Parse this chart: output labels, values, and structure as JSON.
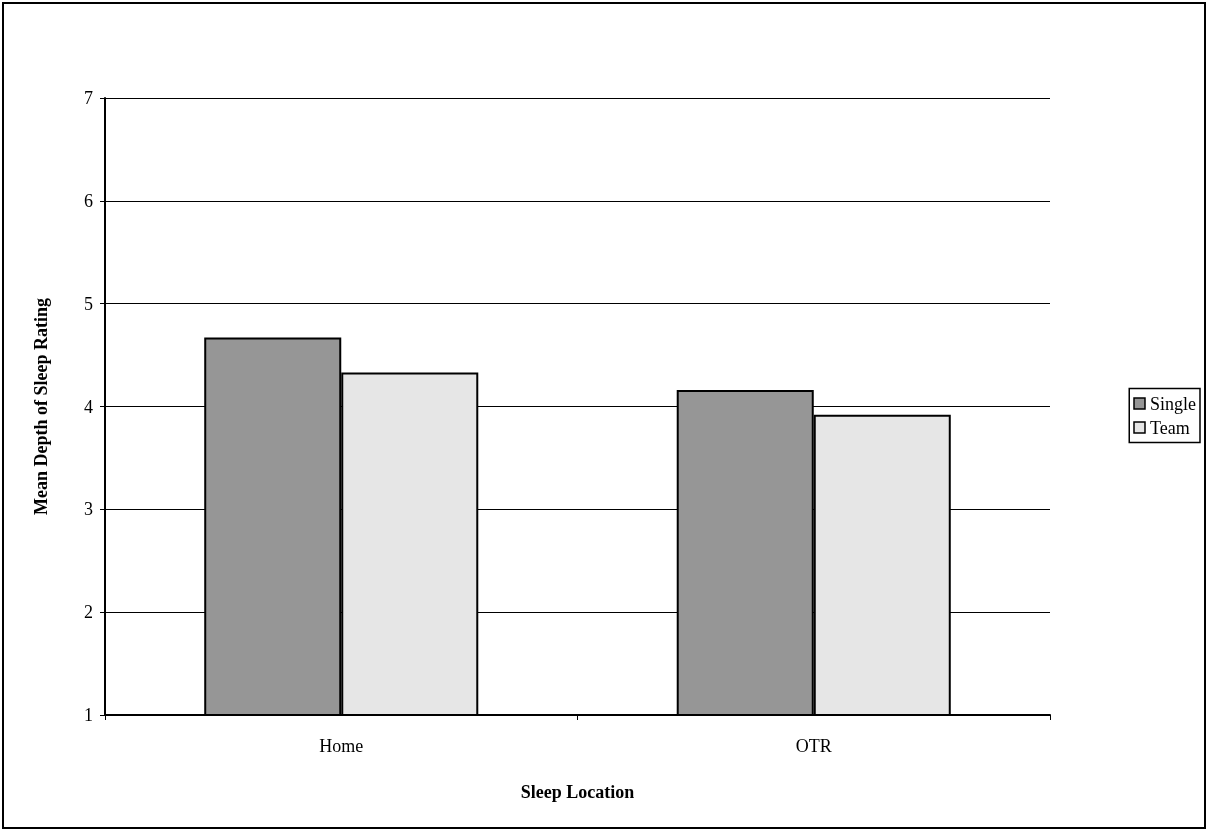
{
  "chart_data": {
    "type": "bar",
    "xlabel": "Sleep Location",
    "ylabel": "Mean Depth of Sleep Rating",
    "categories": [
      "Home",
      "OTR"
    ],
    "series": [
      {
        "name": "Single",
        "color": "#969696",
        "values": [
          4.67,
          4.16
        ]
      },
      {
        "name": "Team",
        "color": "#e6e6e6",
        "values": [
          4.33,
          3.92
        ]
      }
    ],
    "ylim": [
      1,
      7
    ],
    "yticks": [
      1,
      2,
      3,
      4,
      5,
      6,
      7
    ],
    "grid": "y",
    "legend": "right"
  }
}
